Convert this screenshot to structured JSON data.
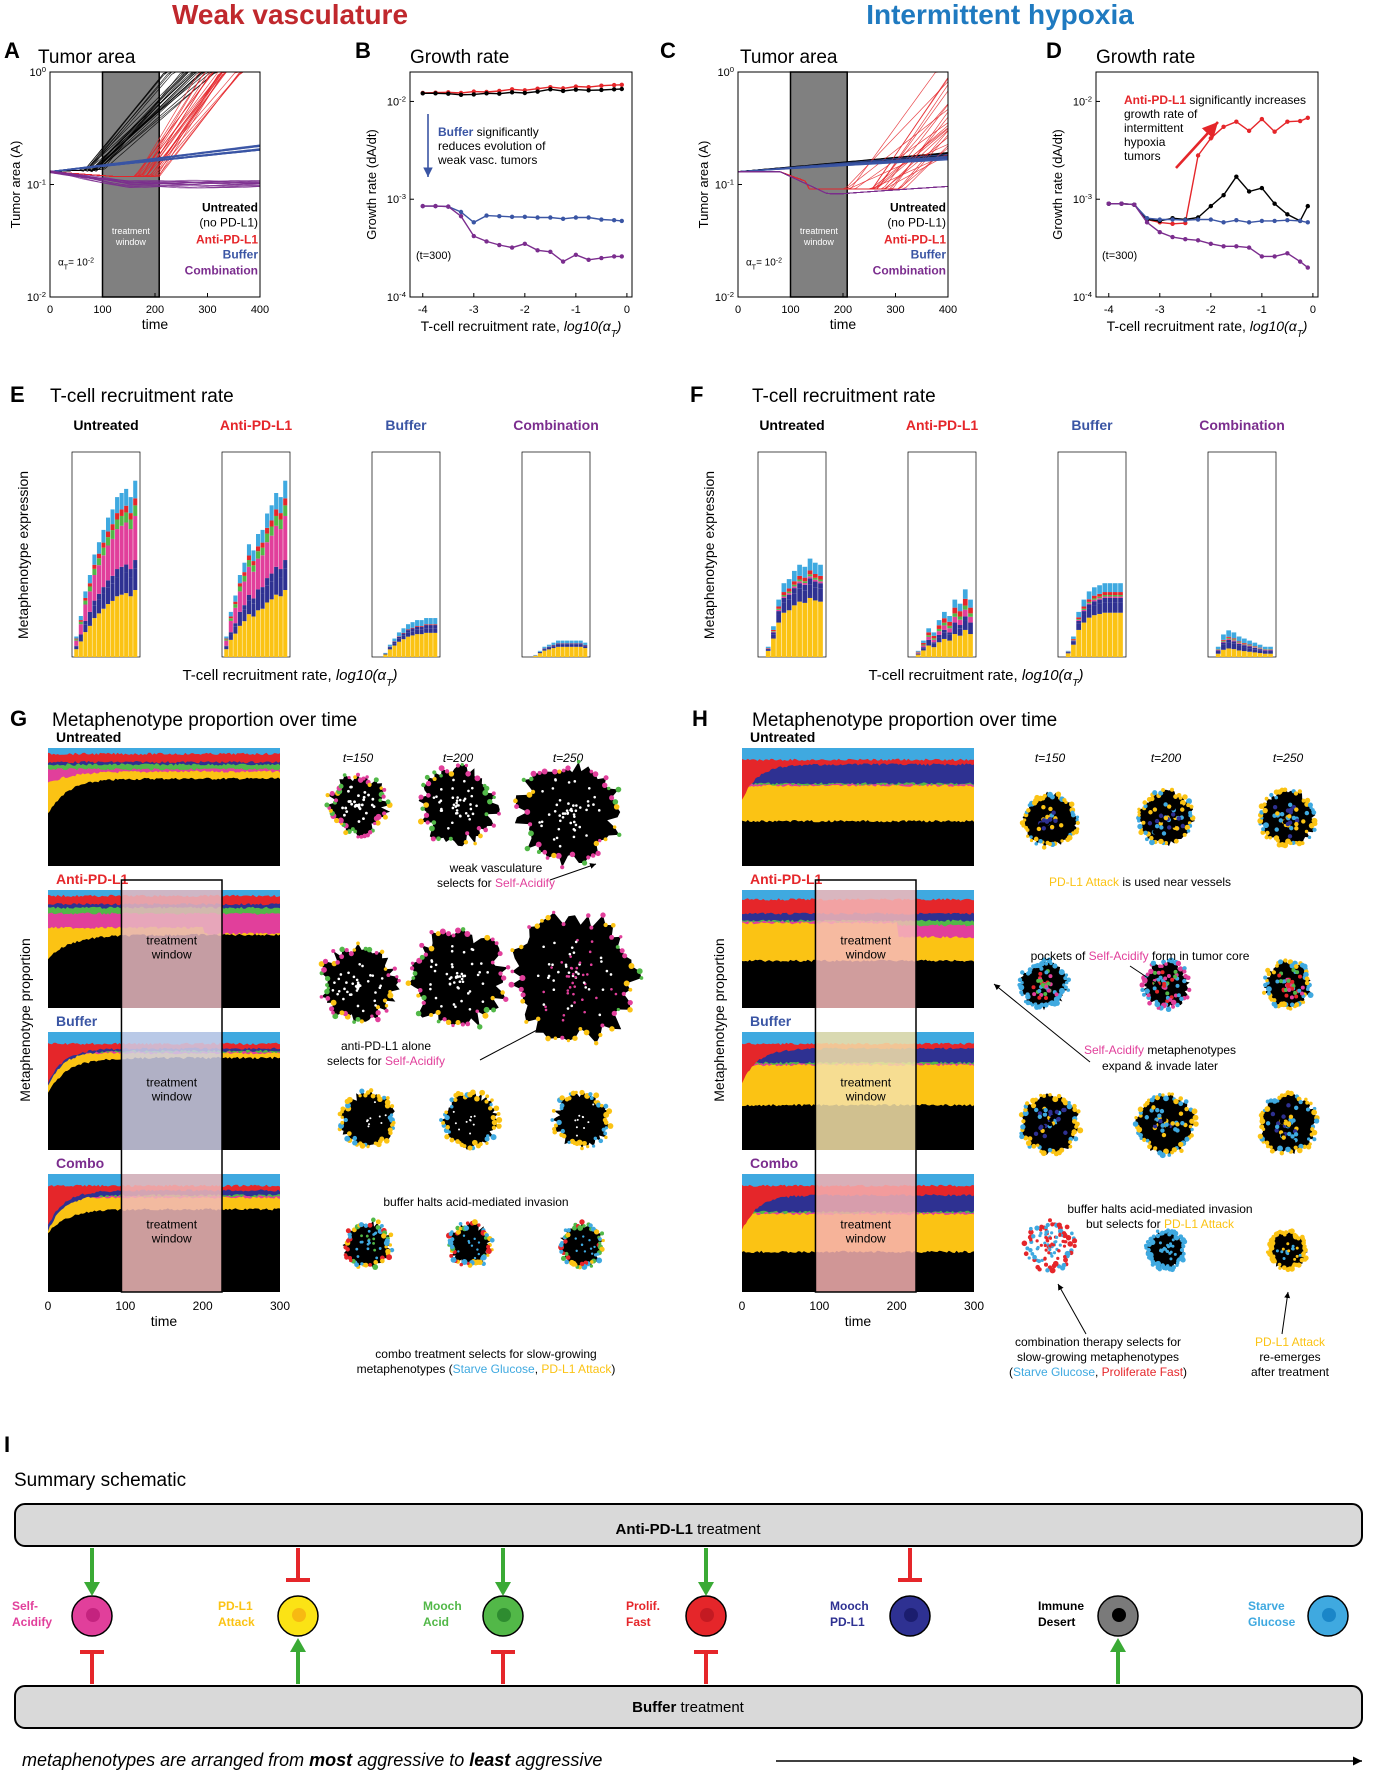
{
  "colors": {
    "weak": "#c0282d",
    "hypoxia": "#1f7ac0",
    "untreated": "#000000",
    "antipdl1": "#e5262a",
    "buffer": "#3a55a4",
    "combination": "#7b2d8e",
    "self_acidify": "#e13f9b",
    "pdl1_attack": "#fbc314",
    "mooch_acid": "#52b848",
    "prolif_fast": "#e5262a",
    "mooch_pdl1": "#2e3192",
    "immune_desert": "#000000",
    "starve_glucose": "#3fa9e0",
    "window": "#808080",
    "tx_light": "#aed8f2",
    "green_arrow": "#3aaa35",
    "red_bar": "#e5262a"
  },
  "headers": {
    "weak": "Weak vasculature",
    "hypoxia": "Intermittent hypoxia"
  },
  "panels": {
    "A": {
      "letter": "A",
      "title": "Tumor area",
      "ylabel": "Tumor area (A)",
      "xlabel": "time",
      "xticks": [
        "0",
        "100",
        "200",
        "300",
        "400"
      ],
      "yticks": [
        "10",
        "10",
        "10"
      ],
      "yexps": [
        "0",
        "-1",
        "-2"
      ],
      "window": "treatment window",
      "window_l1": "treatment",
      "window_l2": "window",
      "alpha": "α",
      "alpha_sub": "T",
      "alpha_val": "= 10",
      "alpha_exp": "-2",
      "legend": [
        "Untreated",
        "(no PD-L1)",
        "Anti-PD-L1",
        "Buffer",
        "Combination"
      ]
    },
    "B": {
      "letter": "B",
      "title": "Growth rate",
      "ylabel": "Growth rate (dA/dt)",
      "xlabel": "T-cell recruitment rate, ",
      "xlabel_it": "log10(α",
      "xlabel_sub": "T",
      "xlabel_end": ")",
      "xticks": [
        "-4",
        "-3",
        "-2",
        "-1",
        "0"
      ],
      "t300": "(t=300)",
      "note_b": "Buffer",
      "note_rest1": " significantly",
      "note2": "reduces evolution of",
      "note3": "weak vasc. tumors"
    },
    "C": {
      "letter": "C",
      "title": "Tumor area"
    },
    "D": {
      "letter": "D",
      "title": "Growth rate",
      "t300": "(t=300)",
      "note_b": "Anti-PD-L1",
      "note_rest1": " significantly increases",
      "note2": "growth rate of",
      "note3": "intermittent",
      "note4": "hypoxia",
      "note5": "tumors"
    },
    "E": {
      "letter": "E",
      "title": "T-cell recruitment rate"
    },
    "F": {
      "letter": "F",
      "title": "T-cell recruitment rate"
    },
    "G": {
      "letter": "G",
      "title": "Metaphenotype proportion over time"
    },
    "H": {
      "letter": "H",
      "title": "Metaphenotype proportion over time"
    },
    "I": {
      "letter": "I",
      "title": "Summary schematic"
    }
  },
  "bar_headers": [
    "Untreated",
    "Anti-PD-L1",
    "Buffer",
    "Combination"
  ],
  "bar_ylabel": "Metaphenotype expression",
  "bar_xlabel": "T-cell recruitment rate, ",
  "bar_xlabel_it": "log10(α",
  "bar_xlabel_sub": "T",
  "bar_xlabel_end": ")",
  "prop_ylabel": "Metaphenotype proportion",
  "prop_xlabel": "time",
  "prop_xticks": [
    "0",
    "100",
    "200",
    "300"
  ],
  "row_labels": [
    "Untreated",
    "Anti-PD-L1",
    "Buffer",
    "Combo"
  ],
  "times": [
    "t=150",
    "t=200",
    "t=250"
  ],
  "G_notes": {
    "n1a": "weak vasculature",
    "n1b": "selects for ",
    "n1c": "Self-Acidify",
    "n2a": "anti-PD-L1 alone",
    "n2b": "selects for ",
    "n2c": "Self-Acidify",
    "n3": "buffer halts acid-mediated invasion",
    "n4a": "combo treatment selects for slow-growing",
    "n4b": "metaphenotypes (",
    "n4c": "Starve Glucose",
    "n4d": ", ",
    "n4e": "PD-L1 Attack",
    "n4f": ")"
  },
  "H_notes": {
    "n1a": "PD-L1 Attack",
    "n1b": " is used near vessels",
    "n2a": "pockets of ",
    "n2b": "Self-Acidify",
    "n2c": " form in tumor core",
    "n3a": "Self-Acidify",
    "n3b": " metaphenotypes",
    "n3c": "expand & invade later",
    "n4a": "buffer halts acid-mediated invasion",
    "n4b": "but selects for ",
    "n4c": "PD-L1 Attack",
    "n5a": "combination therapy selects for",
    "n5b": "slow-growing metaphenotypes",
    "n5c": "(",
    "n5d": "Starve Glucose",
    "n5e": ", ",
    "n5f": "Proliferate Fast",
    "n5g": ")",
    "n6a": "PD-L1 Attack",
    "n6b": "re-emerges",
    "n6c": "after treatment"
  },
  "summary": {
    "top_bold": "Anti-PD-L1",
    "top_rest": " treatment",
    "bottom_bold": "Buffer",
    "bottom_rest": " treatment",
    "footer_a": "metaphenotypes are arranged from ",
    "footer_b": "most",
    "footer_c": " aggressive to ",
    "footer_d": "least",
    "footer_e": " aggressive",
    "cells": [
      {
        "l1": "Self-",
        "l2": "Acidify",
        "color": "#e13f9b",
        "inner": "#c4237f",
        "top": "down",
        "bottom": "bar"
      },
      {
        "l1": "PD-L1",
        "l2": "Attack",
        "color": "#fbe315",
        "inner": "#f7b912",
        "top": "bar",
        "bottom": "up"
      },
      {
        "l1": "Mooch",
        "l2": "Acid",
        "color": "#52b848",
        "inner": "#2e8c30",
        "top": "down",
        "bottom": "bar"
      },
      {
        "l1": "Prolif.",
        "l2": "Fast",
        "color": "#e5262a",
        "inner": "#c41a22",
        "top": "down",
        "bottom": "bar"
      },
      {
        "l1": "Mooch",
        "l2": "PD-L1",
        "color": "#2e3192",
        "inner": "#1b1d6e",
        "top": "bar",
        "bottom": "none"
      },
      {
        "l1": "Immune",
        "l2": "Desert",
        "color": "#7a7a7a",
        "inner": "#000000",
        "top": "none",
        "bottom": "up"
      },
      {
        "l1": "Starve",
        "l2": "Glucose",
        "color": "#3fa9e0",
        "inner": "#1a86c8",
        "top": "none",
        "bottom": "none"
      }
    ]
  },
  "chart_data": [
    {
      "panel": "B",
      "type": "line",
      "title": "Growth rate",
      "xlabel": "T-cell recruitment rate, log10(αT)",
      "ylabel": "Growth rate (dA/dt)",
      "yscale": "log",
      "ylim": [
        0.0001,
        0.02
      ],
      "xlim": [
        -4,
        0
      ],
      "x": [
        -4,
        -3.75,
        -3.5,
        -3.25,
        -3,
        -2.75,
        -2.5,
        -2.25,
        -2,
        -1.75,
        -1.5,
        -1.25,
        -1,
        -0.75,
        -0.5,
        -0.25,
        -0.1
      ],
      "series": [
        {
          "name": "Anti-PD-L1",
          "values": [
            0.0122,
            0.0123,
            0.0124,
            0.0122,
            0.0126,
            0.0125,
            0.0128,
            0.0133,
            0.013,
            0.0135,
            0.014,
            0.0136,
            0.0142,
            0.014,
            0.0145,
            0.0147,
            0.0148
          ]
        },
        {
          "name": "Untreated",
          "values": [
            0.0121,
            0.0121,
            0.012,
            0.0117,
            0.0118,
            0.0121,
            0.012,
            0.0124,
            0.0122,
            0.0126,
            0.0133,
            0.0128,
            0.0132,
            0.013,
            0.0131,
            0.0133,
            0.0134
          ]
        },
        {
          "name": "Buffer",
          "values": [
            0.00085,
            0.00085,
            0.00084,
            0.00074,
            0.00058,
            0.00068,
            0.00067,
            0.00066,
            0.00066,
            0.00065,
            0.00065,
            0.00063,
            0.00065,
            0.00065,
            0.00062,
            0.00061,
            0.0006
          ]
        },
        {
          "name": "Combination",
          "values": [
            0.00085,
            0.00085,
            0.00084,
            0.00067,
            0.00042,
            0.00037,
            0.00034,
            0.00032,
            0.00035,
            0.0003,
            0.00029,
            0.00023,
            0.00027,
            0.00024,
            0.00025,
            0.00026,
            0.00026
          ]
        }
      ]
    },
    {
      "panel": "D",
      "type": "line",
      "title": "Growth rate",
      "xlabel": "T-cell recruitment rate, log10(αT)",
      "ylabel": "Growth rate (dA/dt)",
      "yscale": "log",
      "ylim": [
        0.0001,
        0.02
      ],
      "xlim": [
        -4,
        0
      ],
      "x": [
        -4,
        -3.75,
        -3.5,
        -3.25,
        -3,
        -2.75,
        -2.5,
        -2.25,
        -2,
        -1.75,
        -1.5,
        -1.25,
        -1,
        -0.75,
        -0.5,
        -0.25,
        -0.1
      ],
      "series": [
        {
          "name": "Anti-PD-L1",
          "values": [
            0.0009,
            0.0009,
            0.00088,
            0.00062,
            0.00058,
            0.00056,
            0.00057,
            0.0028,
            0.0042,
            0.0055,
            0.0062,
            0.005,
            0.0066,
            0.0049,
            0.0062,
            0.0063,
            0.0068
          ]
        },
        {
          "name": "Untreated",
          "values": [
            0.0009,
            0.0009,
            0.00088,
            0.00062,
            0.0006,
            0.00064,
            0.00062,
            0.00065,
            0.00085,
            0.0011,
            0.0017,
            0.0012,
            0.0013,
            0.0009,
            0.0007,
            0.0006,
            0.00085
          ]
        },
        {
          "name": "Buffer",
          "values": [
            0.0009,
            0.0009,
            0.00088,
            0.00064,
            0.00062,
            0.00062,
            0.00061,
            0.00062,
            0.00062,
            0.00058,
            0.00061,
            0.00058,
            0.0006,
            0.0006,
            0.00061,
            0.0006,
            0.00058
          ]
        },
        {
          "name": "Combination",
          "values": [
            0.0009,
            0.0009,
            0.00088,
            0.00058,
            0.00046,
            0.00041,
            0.00039,
            0.00038,
            0.00035,
            0.00033,
            0.00033,
            0.00032,
            0.00026,
            0.00026,
            0.00028,
            0.00023,
            0.0002
          ]
        }
      ]
    }
  ]
}
